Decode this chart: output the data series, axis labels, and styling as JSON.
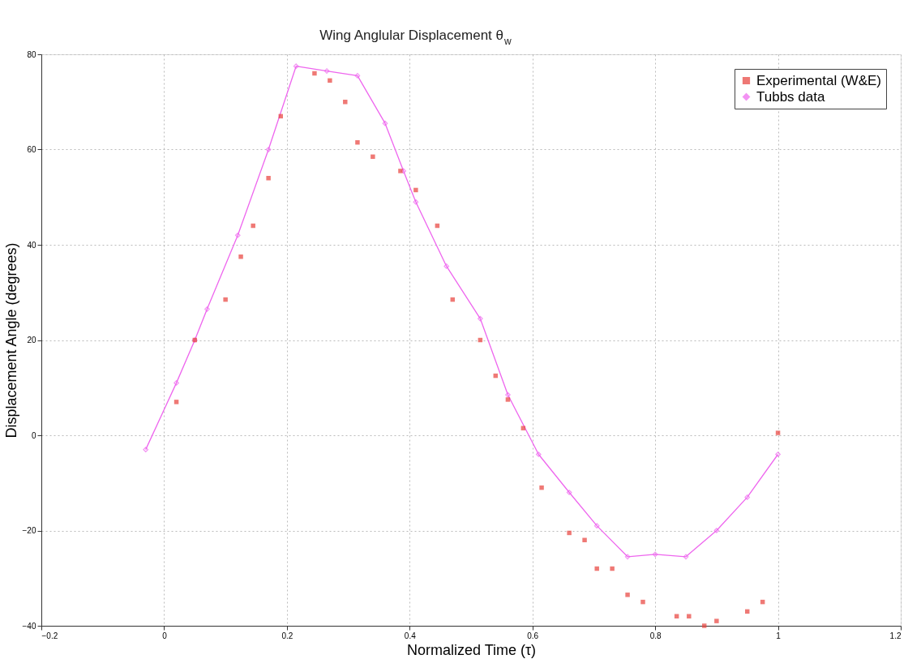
{
  "chart_data": {
    "type": "line",
    "title": "Wing Anglular Displacement θ$_{w}$",
    "xlabel": "Normalized Time (τ)",
    "ylabel": "Displacement Angle (degrees)",
    "xlim": [
      -0.2,
      1.2
    ],
    "xticks": [
      -0.2,
      0,
      0.2,
      0.4,
      0.6,
      0.8,
      1,
      1.2
    ],
    "ylim": [
      -40,
      80
    ],
    "yticks": [
      -40,
      -20,
      0,
      20,
      40,
      60,
      80
    ],
    "grid": true,
    "legend": "top right",
    "series": [
      {
        "name": "Experimental (W&E)",
        "type": "scatter",
        "marker": "square",
        "color": "#e8403a",
        "x": [
          0.02,
          0.05,
          0.1,
          0.125,
          0.145,
          0.17,
          0.19,
          0.245,
          0.27,
          0.295,
          0.315,
          0.34,
          0.385,
          0.41,
          0.445,
          0.47,
          0.515,
          0.54,
          0.56,
          0.585,
          0.615,
          0.66,
          0.685,
          0.705,
          0.73,
          0.755,
          0.78,
          0.835,
          0.855,
          0.88,
          0.9,
          0.95,
          0.975,
          1.0
        ],
        "values": [
          7,
          20,
          28.5,
          37.5,
          44,
          54,
          67,
          76,
          74.5,
          70,
          61.5,
          58.5,
          55.5,
          51.5,
          44,
          28.5,
          20,
          12.5,
          7.5,
          1.5,
          -11,
          -20.5,
          -22,
          -28,
          -28,
          -33.5,
          -35,
          -38,
          -38,
          -40,
          -39,
          -37,
          -35,
          0.5
        ]
      },
      {
        "name": "Tubbs data",
        "marker": "diamond",
        "line_style": "solid",
        "color": "#ee66ee",
        "x": [
          -0.03,
          0.02,
          0.05,
          0.07,
          0.12,
          0.17,
          0.215,
          0.265,
          0.315,
          0.36,
          0.39,
          0.41,
          0.46,
          0.515,
          0.56,
          0.61,
          0.66,
          0.705,
          0.755,
          0.8,
          0.85,
          0.9,
          0.95,
          1.0
        ],
        "values": [
          -3,
          11,
          20,
          26.5,
          42,
          60,
          77.5,
          76.5,
          75.5,
          65.5,
          55.5,
          49,
          35.5,
          24.5,
          8.5,
          -4,
          -12,
          -19,
          -25.5,
          -25,
          -25.5,
          -20,
          -13,
          -4
        ]
      }
    ]
  }
}
